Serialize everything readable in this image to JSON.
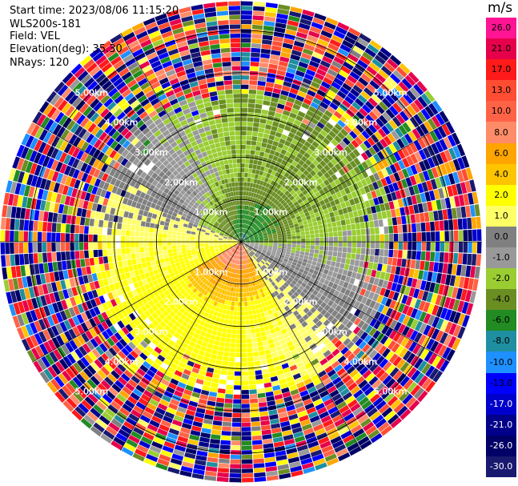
{
  "header": {
    "start_time": "Start time: 2023/08/06 11:15:20",
    "instrument": "WLS200s-181",
    "field": "Field: VEL",
    "elevation": "Elevation(deg): 35.30",
    "nrays": "NRays: 120"
  },
  "colorbar": {
    "unit": "m/s",
    "levels": [
      {
        "label": "26.0",
        "color": "#ff1493",
        "text_color": "#000000"
      },
      {
        "label": "21.0",
        "color": "#e6004c",
        "text_color": "#000000"
      },
      {
        "label": "17.0",
        "color": "#ff1a1a",
        "text_color": "#000000"
      },
      {
        "label": "13.0",
        "color": "#ff4d33",
        "text_color": "#000000"
      },
      {
        "label": "10.0",
        "color": "#ff6347",
        "text_color": "#000000"
      },
      {
        "label": "8.0",
        "color": "#ff8c69",
        "text_color": "#000000"
      },
      {
        "label": "6.0",
        "color": "#ffa500",
        "text_color": "#000000"
      },
      {
        "label": "4.0",
        "color": "#ffc400",
        "text_color": "#000000"
      },
      {
        "label": "2.0",
        "color": "#ffff00",
        "text_color": "#000000"
      },
      {
        "label": "1.0",
        "color": "#ffff66",
        "text_color": "#000000"
      },
      {
        "label": "0.0",
        "color": "#808080",
        "text_color": "#000000"
      },
      {
        "label": "-1.0",
        "color": "#999999",
        "text_color": "#000000"
      },
      {
        "label": "-2.0",
        "color": "#9acd32",
        "text_color": "#000000"
      },
      {
        "label": "-4.0",
        "color": "#6b8e23",
        "text_color": "#000000"
      },
      {
        "label": "-6.0",
        "color": "#228b22",
        "text_color": "#000000"
      },
      {
        "label": "-8.0",
        "color": "#1e8fa0",
        "text_color": "#000000"
      },
      {
        "label": "-10.0",
        "color": "#1e90ff",
        "text_color": "#000000"
      },
      {
        "label": "-13.0",
        "color": "#0000ff",
        "text_color": "#000000"
      },
      {
        "label": "-17.0",
        "color": "#0000cd",
        "text_color": "#ffffff"
      },
      {
        "label": "-21.0",
        "color": "#00008b",
        "text_color": "#ffffff"
      },
      {
        "label": "-26.0",
        "color": "#000066",
        "text_color": "#ffffff"
      },
      {
        "label": "-30.0",
        "color": "#191970",
        "text_color": "#ffffff"
      }
    ]
  },
  "chart_data": {
    "type": "ppi-polar-heatmap",
    "field": "VEL",
    "units": "m/s",
    "elevation_deg": 35.3,
    "n_rays": 120,
    "range_rings_km": [
      1.0,
      2.0,
      3.0,
      4.0,
      5.0
    ],
    "range_ring_labels": [
      "1.00km",
      "2.00km",
      "3.00km",
      "4.00km",
      "5.00km"
    ],
    "max_range_km": 5.7,
    "color_scale_ms": [
      -30.0,
      -26.0,
      -21.0,
      -17.0,
      -13.0,
      -10.0,
      -8.0,
      -6.0,
      -4.0,
      -2.0,
      -1.0,
      0.0,
      1.0,
      2.0,
      4.0,
      6.0,
      8.0,
      10.0,
      13.0,
      17.0,
      21.0,
      26.0
    ]
  }
}
